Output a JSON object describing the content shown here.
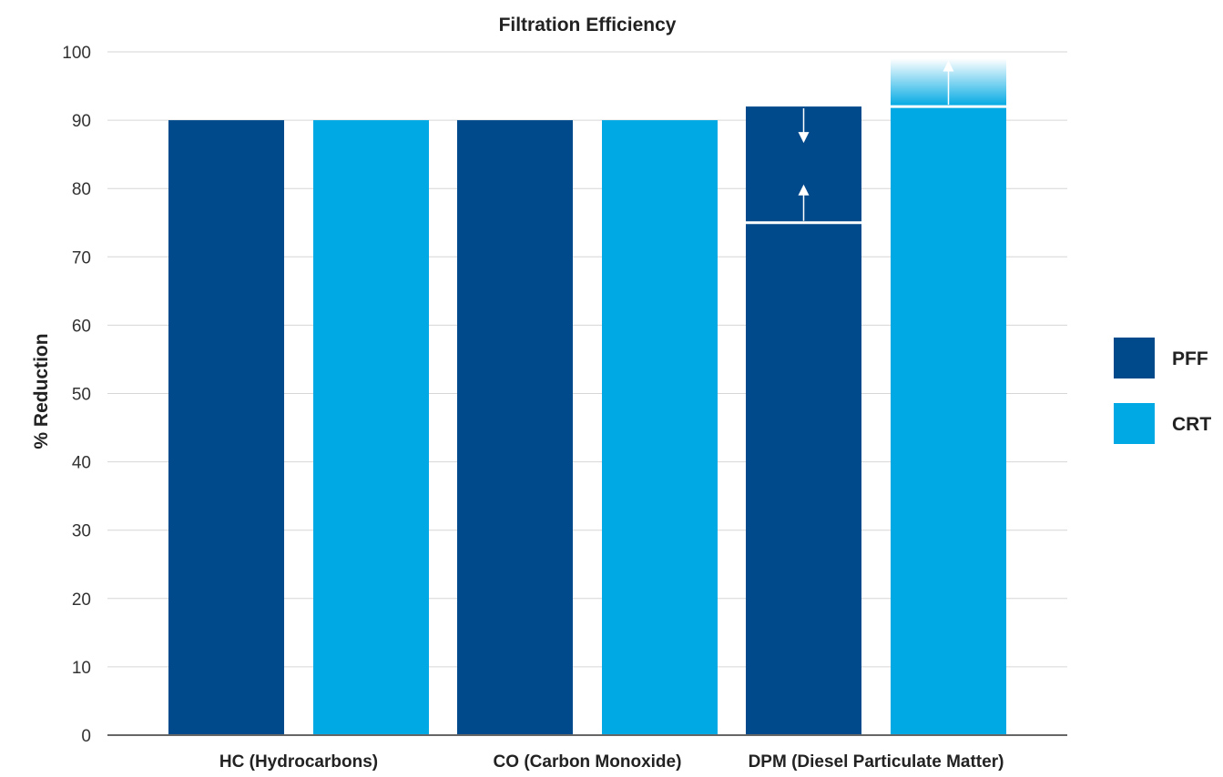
{
  "chart_data": {
    "type": "bar",
    "title": "Filtration Efficiency",
    "xlabel": "",
    "ylabel": "% Reduction",
    "ylim": [
      0,
      100
    ],
    "yticks": [
      0,
      10,
      20,
      30,
      40,
      50,
      60,
      70,
      80,
      90,
      100
    ],
    "grid": true,
    "legend_position": "right",
    "categories": [
      "HC (Hydrocarbons)",
      "CO (Carbon Monoxide)",
      "DPM (Diesel Particulate Matter)"
    ],
    "series": [
      {
        "name": "PFF",
        "color": "#004a8c",
        "values": [
          90,
          90,
          92
        ],
        "range_low": [
          null,
          null,
          75
        ]
      },
      {
        "name": "CRT",
        "color": "#00a9e3",
        "values": [
          90,
          90,
          92
        ],
        "range_high": [
          null,
          null,
          99
        ]
      }
    ]
  }
}
